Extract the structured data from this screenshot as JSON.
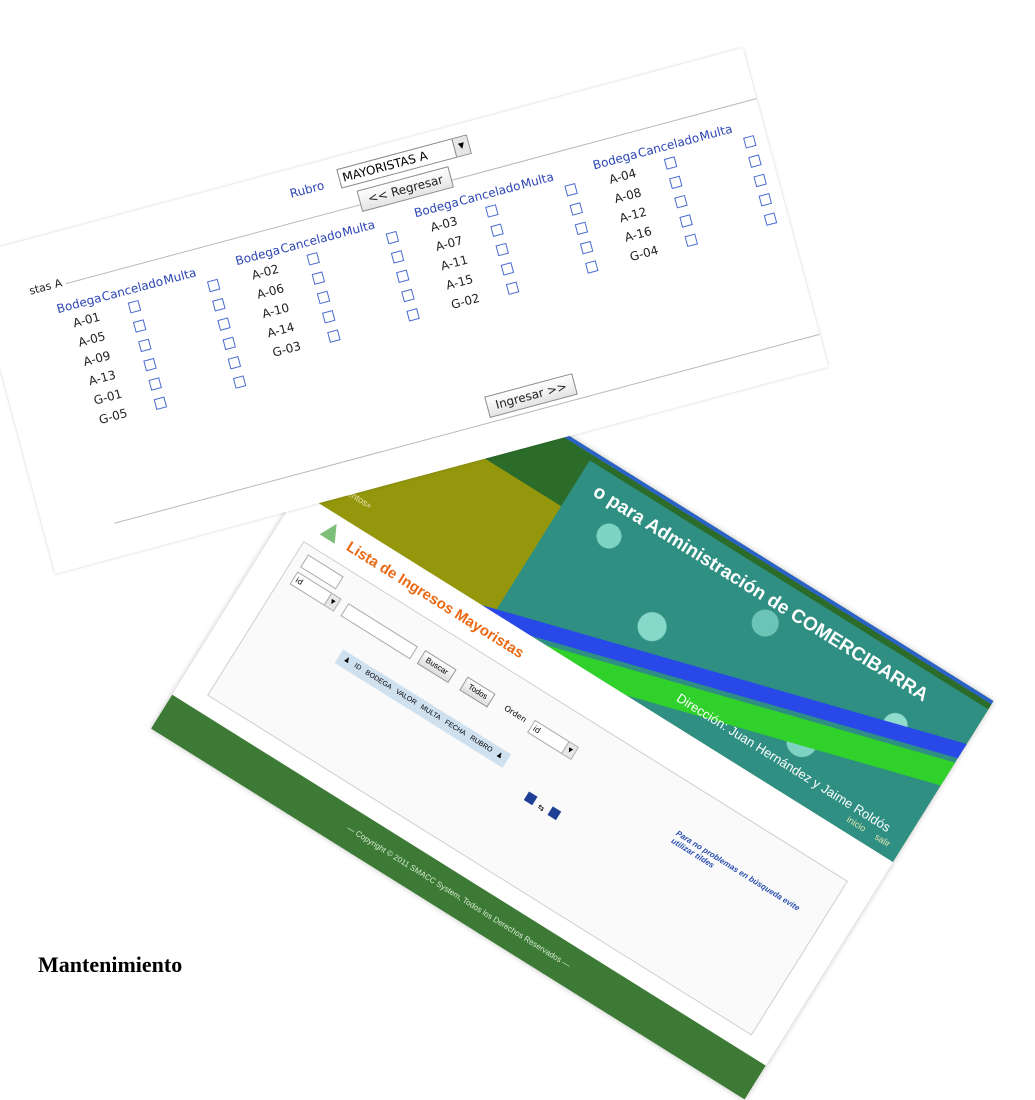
{
  "app": {
    "title": "o para Administración de COMERCIBARRA",
    "direccion": "Dirección: Juan Hernández y Jaime Roldós",
    "documentos_link": "ocumentos»",
    "nav": [
      "inicio",
      "salir"
    ],
    "list_title": "Lista de Ingresos Mayoristas",
    "search": {
      "field_value": "id",
      "order_label": "Orden",
      "order_value": "id",
      "buscar_label": "Buscar",
      "todos_label": "Todos"
    },
    "hint": "Para no problemas en búsqueda evite utilizar tildes",
    "columns": [
      "ID",
      "BODEGA",
      "VALOR",
      "MULTA",
      "FECHA",
      "RUBRO"
    ],
    "footer": "— Copyright © 2011 SMACC System, Todos los Derechos Reservados —"
  },
  "form": {
    "legend": "stas A",
    "rubro_label": "Rubro",
    "rubro_value": "MAYORISTAS A",
    "back_button": "<< Regresar",
    "submit_button": "Ingresar >>",
    "headers": {
      "bodega": "Bodega",
      "cancelado": "Cancelado",
      "multa": "Multa"
    },
    "groups": [
      [
        "A-01",
        "A-05",
        "A-09",
        "A-13",
        "G-01",
        "G-05"
      ],
      [
        "A-02",
        "A-06",
        "A-10",
        "A-14",
        "G-03"
      ],
      [
        "A-03",
        "A-07",
        "A-11",
        "A-15",
        "G-02"
      ],
      [
        "A-04",
        "A-08",
        "A-12",
        "A-16",
        "G-04"
      ]
    ]
  },
  "caption": "Mantenimiento"
}
